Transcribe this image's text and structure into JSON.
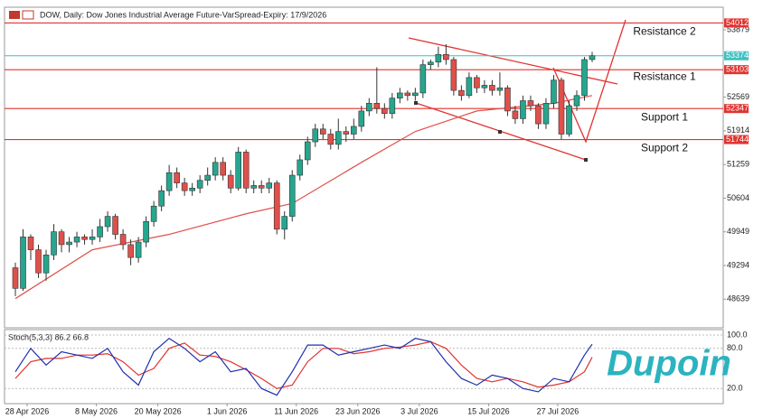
{
  "chart_data": {
    "type": "candlestick",
    "title": "DOW, Daily: Dow Jones Industrial Average Future-VarSpread-Expiry: 17/9/2026",
    "ylim": [
      48100,
      54195
    ],
    "yticks": [
      48639,
      49294,
      49949,
      50604,
      51259,
      51914,
      52569,
      53879
    ],
    "xticks": [
      {
        "value": 0,
        "label": "28 Apr 2026"
      },
      {
        "value": 9,
        "label": "8 May 2026"
      },
      {
        "value": 17,
        "label": "20 May 2026"
      },
      {
        "value": 26,
        "label": "1 Jun 2026"
      },
      {
        "value": 35,
        "label": "11 Jun 2026"
      },
      {
        "value": 43,
        "label": "23 Jun 2026"
      },
      {
        "value": 51,
        "label": "3 Jul 2026"
      },
      {
        "value": 60,
        "label": "15 Jul 2026"
      },
      {
        "value": 69,
        "label": "27 Jul 2026"
      }
    ],
    "up_color": "#26a68e",
    "down_color": "#e0504b",
    "open": [
      49250,
      48850,
      49850,
      49600,
      49150,
      49500,
      49950,
      49700,
      49750,
      49850,
      49800,
      49850,
      50050,
      50250,
      49900,
      49700,
      49450,
      49750,
      50150,
      50450,
      50750,
      51100,
      50900,
      50750,
      50800,
      50950,
      51050,
      51300,
      51050,
      50800,
      51500,
      50800,
      50850,
      50800,
      50900,
      50000,
      50250,
      51050,
      51350,
      51700,
      51950,
      51850,
      51650,
      51900,
      51850,
      52000,
      52300,
      52450,
      52350,
      52250,
      52550,
      52650,
      52600,
      52650,
      53200,
      53250,
      53400,
      53300,
      52700,
      52600,
      52950,
      52750,
      52800,
      52700,
      52750,
      52300,
      52150,
      52500,
      52400,
      52050,
      52450,
      52900,
      51850,
      52400,
      52600,
      53300
    ],
    "high": [
      49350,
      50000,
      49900,
      49700,
      49600,
      50100,
      50000,
      49850,
      49950,
      49900,
      50000,
      50200,
      50350,
      50300,
      50000,
      49800,
      49850,
      50250,
      50550,
      50850,
      51250,
      51200,
      51000,
      50900,
      51050,
      51200,
      51400,
      51400,
      51150,
      51600,
      51550,
      50950,
      50950,
      51000,
      50950,
      50350,
      51150,
      51450,
      51800,
      52050,
      52050,
      51950,
      52150,
      52000,
      52150,
      52400,
      52550,
      53150,
      52450,
      52650,
      52750,
      52700,
      52750,
      53300,
      53300,
      53550,
      53600,
      53350,
      52800,
      53050,
      53000,
      52900,
      52900,
      53050,
      52800,
      52400,
      52600,
      52600,
      52450,
      52550,
      53000,
      52950,
      52500,
      52700,
      53350,
      53450
    ],
    "low": [
      48700,
      48800,
      49400,
      49050,
      49000,
      49400,
      49550,
      49550,
      49650,
      49700,
      49700,
      49750,
      49950,
      49800,
      49600,
      49300,
      49350,
      49650,
      50050,
      50350,
      50650,
      50800,
      50650,
      50650,
      50700,
      50850,
      50950,
      50950,
      50700,
      50750,
      50700,
      50700,
      50700,
      50700,
      49900,
      49800,
      50150,
      50950,
      51250,
      51600,
      51750,
      51550,
      51550,
      51700,
      51750,
      51900,
      52200,
      52250,
      52150,
      52150,
      52450,
      52500,
      52500,
      52550,
      53100,
      53150,
      53200,
      52600,
      52500,
      52550,
      52650,
      52650,
      52600,
      52600,
      52200,
      52050,
      52050,
      52300,
      51950,
      51950,
      52350,
      51750,
      51800,
      52300,
      52500,
      53250
    ],
    "close": [
      48850,
      49850,
      49600,
      49150,
      49500,
      49950,
      49700,
      49750,
      49850,
      49800,
      49850,
      50050,
      50250,
      49900,
      49700,
      49450,
      49750,
      50150,
      50450,
      50750,
      51100,
      50900,
      50750,
      50800,
      50950,
      51050,
      51300,
      51050,
      50800,
      51500,
      50800,
      50850,
      50800,
      50900,
      50000,
      50250,
      51050,
      51350,
      51700,
      51950,
      51850,
      51650,
      51900,
      51850,
      52000,
      52300,
      52450,
      52350,
      52250,
      52550,
      52650,
      52600,
      52650,
      53200,
      53250,
      53400,
      53300,
      52700,
      52600,
      52950,
      52750,
      52800,
      52700,
      52750,
      52300,
      52150,
      52500,
      52400,
      52050,
      52450,
      52900,
      51850,
      52400,
      52600,
      53300,
      53374
    ],
    "ma": {
      "color": "#e0504b",
      "x": [
        0,
        10,
        20,
        30,
        36,
        45,
        52,
        60,
        70,
        75
      ],
      "values": [
        48650,
        49600,
        49900,
        50300,
        50500,
        51300,
        51900,
        52300,
        52450,
        52600
      ]
    },
    "current_price": {
      "value": 53374,
      "color": "#3fbfbf"
    },
    "levels": [
      {
        "price": 54012,
        "name": "Resistance 2"
      },
      {
        "price": 53103,
        "name": "Resistance 1"
      },
      {
        "price": 52347,
        "name": "Support 1"
      },
      {
        "price": 51744,
        "name": "Support 2"
      }
    ],
    "level_color": "#e0332f",
    "stoch": {
      "title": "Stoch(5,3,3) 86.2 66.8",
      "ylim": [
        0,
        100
      ],
      "yticks": [
        {
          "value": 100,
          "label": "100.0"
        },
        {
          "value": 80,
          "label": "80.0"
        },
        {
          "value": 20,
          "label": "20.0"
        }
      ],
      "x": [
        0,
        2,
        4,
        6,
        8,
        10,
        12,
        14,
        16,
        18,
        20,
        22,
        24,
        26,
        28,
        30,
        32,
        34,
        36,
        38,
        40,
        42,
        44,
        46,
        48,
        50,
        52,
        54,
        56,
        58,
        60,
        62,
        64,
        66,
        68,
        70,
        72,
        74,
        75
      ],
      "k": {
        "color": "#1f2fb0",
        "values": [
          45,
          80,
          55,
          75,
          70,
          65,
          80,
          45,
          25,
          75,
          95,
          80,
          60,
          75,
          45,
          50,
          20,
          10,
          45,
          85,
          85,
          70,
          75,
          80,
          85,
          80,
          95,
          90,
          60,
          35,
          25,
          40,
          35,
          20,
          15,
          35,
          30,
          70,
          86.2
        ]
      },
      "d": {
        "color": "#e0332f",
        "values": [
          35,
          60,
          65,
          65,
          70,
          70,
          72,
          60,
          40,
          50,
          80,
          88,
          70,
          68,
          60,
          48,
          35,
          20,
          25,
          60,
          80,
          80,
          72,
          75,
          80,
          82,
          85,
          90,
          80,
          55,
          35,
          30,
          35,
          30,
          22,
          25,
          30,
          45,
          66.8
        ]
      }
    },
    "watermark": "Dupoin"
  }
}
